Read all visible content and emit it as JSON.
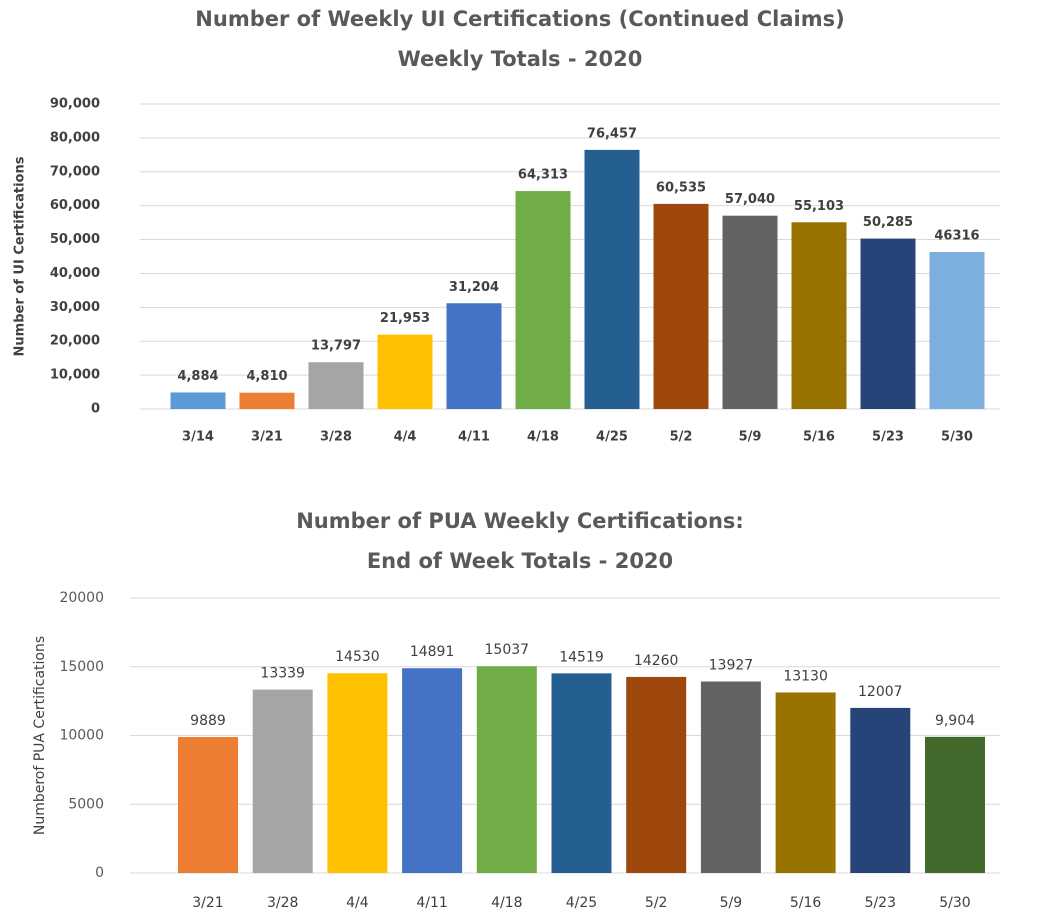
{
  "chart_data": [
    {
      "type": "bar",
      "title": "Number of Weekly UI Certifications (Continued Claims)",
      "subtitle": "Weekly Totals - 2020",
      "y_label": "Number of UI Certifications",
      "categories": [
        "3/14",
        "3/21",
        "3/28",
        "4/4",
        "4/11",
        "4/18",
        "4/25",
        "5/2",
        "5/9",
        "5/16",
        "5/23",
        "5/30"
      ],
      "values": [
        4884,
        4810,
        13797,
        21953,
        31204,
        64313,
        76457,
        60535,
        57040,
        55103,
        50285,
        46316
      ],
      "value_labels": [
        "4,884",
        "4,810",
        "13,797",
        "21,953",
        "31,204",
        "64,313",
        "76,457",
        "60,535",
        "57,040",
        "55,103",
        "50,285",
        "46316"
      ],
      "colors": [
        "#5b9bd5",
        "#ed7d31",
        "#a5a5a5",
        "#ffc000",
        "#4472c4",
        "#70ad47",
        "#255e91",
        "#9e480e",
        "#636363",
        "#997300",
        "#264478",
        "#7cafdd"
      ],
      "ylim": [
        0,
        90000
      ],
      "yticks": [
        0,
        {
          "value": 10000,
          "label": "10,000"
        },
        {
          "value": 20000,
          "label": "20,000"
        },
        {
          "value": 30000,
          "label": "30,000"
        },
        {
          "value": 40000,
          "label": "40,000"
        },
        {
          "value": 50000,
          "label": "50,000"
        },
        {
          "value": 60000,
          "label": "60,000"
        },
        {
          "value": 70000,
          "label": "70,000"
        },
        {
          "value": 80000,
          "label": "80,000"
        },
        {
          "value": 90000,
          "label": "90,000"
        }
      ],
      "grid": true
    },
    {
      "type": "bar",
      "title": "Number of PUA Weekly Certifications:",
      "subtitle": "End of Week Totals - 2020",
      "y_label": "Numberof PUA Certifications",
      "categories": [
        "3/21",
        "3/28",
        "4/4",
        "4/11",
        "4/18",
        "4/25",
        "5/2",
        "5/9",
        "5/16",
        "5/23",
        "5/30"
      ],
      "values": [
        9889,
        13339,
        14530,
        14891,
        15037,
        14519,
        14260,
        13927,
        13130,
        12007,
        9904
      ],
      "value_labels": [
        "9889",
        "13339",
        "14530",
        "14891",
        "15037",
        "14519",
        "14260",
        "13927",
        "13130",
        "12007",
        "9,904"
      ],
      "colors": [
        "#ed7d31",
        "#a5a5a5",
        "#ffc000",
        "#4472c4",
        "#70ad47",
        "#255e91",
        "#9e480e",
        "#636363",
        "#997300",
        "#264478",
        "#43682b"
      ],
      "ylim": [
        0,
        20000
      ],
      "yticks": [
        0,
        5000,
        10000,
        15000,
        20000
      ],
      "grid": true
    }
  ]
}
